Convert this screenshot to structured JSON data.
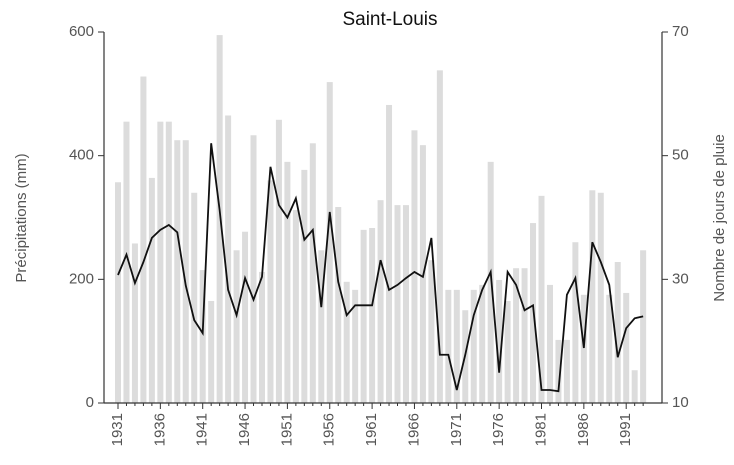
{
  "chart_data": {
    "type": "bar_line",
    "title": "Saint-Louis",
    "y_label": "Précipitations (mm)",
    "y2_label": "Nombre de jours de pluie",
    "categories": [
      "1931",
      null,
      null,
      null,
      null,
      "1936",
      null,
      null,
      null,
      null,
      "1941",
      null,
      null,
      null,
      null,
      "1946",
      null,
      null,
      null,
      null,
      "1951",
      null,
      null,
      null,
      null,
      "1956",
      null,
      null,
      null,
      null,
      "1961",
      null,
      null,
      null,
      null,
      "1966",
      null,
      null,
      null,
      null,
      "1971",
      null,
      null,
      null,
      null,
      "1976",
      null,
      null,
      null,
      null,
      "1981",
      null,
      null,
      null,
      null,
      "1986",
      null,
      null,
      null,
      null,
      "1991",
      null,
      null
    ],
    "series": [
      {
        "color": "#dcdcdc",
        "type": "bar",
        "values": [
          357,
          455,
          258,
          528,
          364,
          455,
          455,
          425,
          425,
          340,
          215,
          165,
          595,
          465,
          247,
          277,
          433,
          212,
          360,
          458,
          390,
          312,
          377,
          420,
          247,
          519,
          317,
          196,
          183,
          280,
          283,
          328,
          482,
          320,
          320,
          441,
          417,
          231,
          538,
          183,
          183,
          150,
          183,
          191,
          390,
          199,
          165,
          218,
          218,
          291,
          335,
          191,
          102,
          102,
          260,
          175,
          344,
          340,
          175,
          228,
          178,
          53,
          247
        ]
      },
      {
        "color": "#111111",
        "type": "line",
        "axis": "y2",
        "values": [
          30.7,
          34,
          29.4,
          32.8,
          36.7,
          38,
          38.8,
          37.6,
          29,
          23.4,
          21.3,
          52,
          41.2,
          28.3,
          24.2,
          30.2,
          26.7,
          30.4,
          48.2,
          42,
          40,
          43.1,
          36.4,
          38,
          25.5,
          40.9,
          29.6,
          24.2,
          25.8,
          25.8,
          25.8,
          33.1,
          28.3,
          29.1,
          30.2,
          31.2,
          30.4,
          36.7,
          17.8,
          17.8,
          12.1,
          17.8,
          24.2,
          28.3,
          31.2,
          14.9,
          31.2,
          29.1,
          25,
          25.8,
          12.1,
          12.1,
          11.9,
          27.5,
          30.2,
          18.9,
          36,
          32.8,
          29.1,
          17.4,
          22.1,
          23.7,
          24
        ]
      }
    ],
    "ylim": [
      0,
      600
    ],
    "yticks": [
      0,
      200,
      400,
      600
    ],
    "y2lim": [
      10,
      70
    ],
    "y2ticks": [
      10,
      30,
      50,
      70
    ]
  }
}
